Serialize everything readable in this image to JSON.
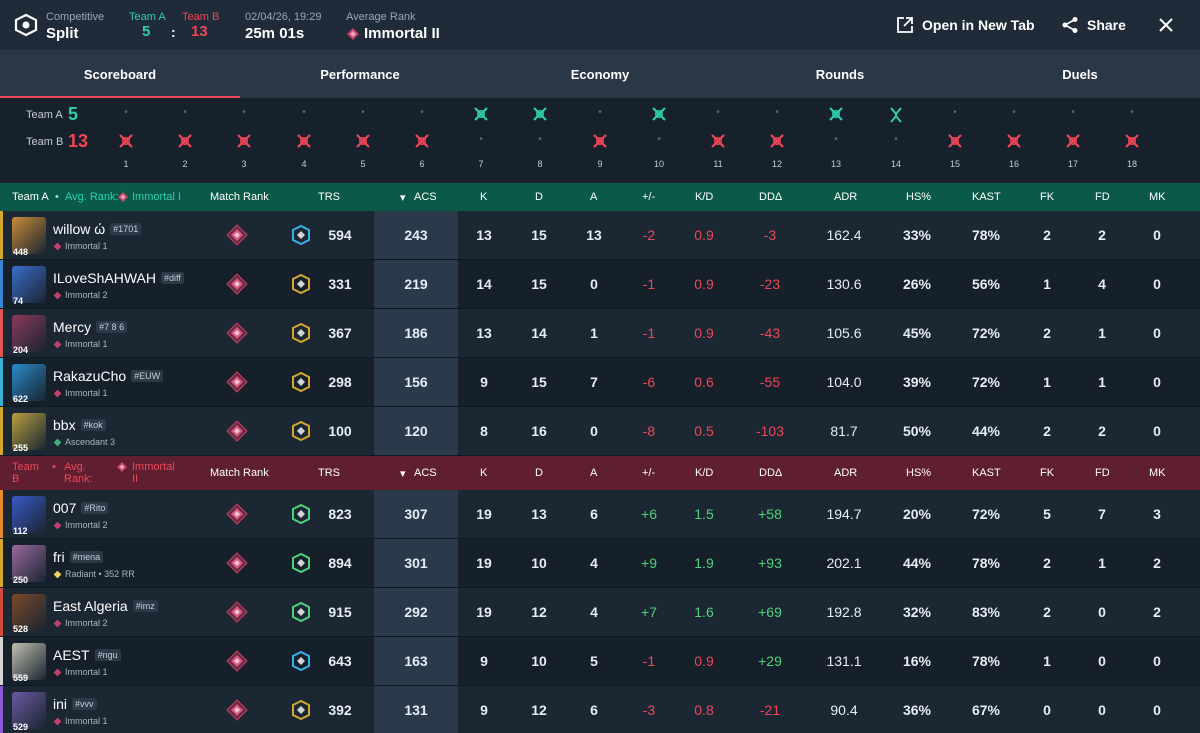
{
  "header": {
    "mode": "Competitive",
    "map": "Split",
    "team_a_label": "Team A",
    "team_b_label": "Team B",
    "score_a": "5",
    "score_sep": ":",
    "score_b": "13",
    "date": "02/04/26, 19:29",
    "duration": "25m 01s",
    "avg_rank_label": "Average Rank",
    "avg_rank": "Immortal II",
    "open_new_tab": "Open in New Tab",
    "share": "Share"
  },
  "tabs": [
    "Scoreboard",
    "Performance",
    "Economy",
    "Rounds",
    "Duels"
  ],
  "timeline": {
    "team_a_label": "Team A",
    "team_a_score": "5",
    "team_b_label": "Team B",
    "team_b_score": "13",
    "rounds": [
      "1",
      "2",
      "3",
      "4",
      "5",
      "6",
      "7",
      "8",
      "9",
      "10",
      "11",
      "12",
      "13",
      "14",
      "15",
      "16",
      "17",
      "18"
    ],
    "winners": [
      "B",
      "B",
      "B",
      "B",
      "B",
      "B",
      "A",
      "A",
      "B",
      "A",
      "B",
      "B",
      "A",
      "A",
      "B",
      "B",
      "B",
      "B"
    ],
    "special_round": "14"
  },
  "columns": [
    "Match Rank",
    "TRS",
    "ACS",
    "K",
    "D",
    "A",
    "+/-",
    "K/D",
    "DDΔ",
    "ADR",
    "HS%",
    "KAST",
    "FK",
    "FD",
    "MK"
  ],
  "team_a": {
    "label": "Team A",
    "avg_label": "Avg. Rank:",
    "avg_rank": "Immortal I",
    "players": [
      {
        "name": "willow ώ",
        "tag": "#1701",
        "rank": "Immortal 1",
        "level": "448",
        "trs": "594",
        "acs": "243",
        "k": "13",
        "d": "15",
        "a": "13",
        "pm": "-2",
        "kd": "0.9",
        "dd": "-3",
        "adr": "162.4",
        "hs": "33%",
        "kast": "78%",
        "fk": "2",
        "fd": "2",
        "mk": "0"
      },
      {
        "name": "ILoveShAHWAH",
        "tag": "#diff",
        "rank": "Immortal 2",
        "level": "74",
        "trs": "331",
        "acs": "219",
        "k": "14",
        "d": "15",
        "a": "0",
        "pm": "-1",
        "kd": "0.9",
        "dd": "-23",
        "adr": "130.6",
        "hs": "26%",
        "kast": "56%",
        "fk": "1",
        "fd": "4",
        "mk": "0"
      },
      {
        "name": "Mercy",
        "tag": "#7 8 6",
        "rank": "Immortal 1",
        "level": "204",
        "trs": "367",
        "acs": "186",
        "k": "13",
        "d": "14",
        "a": "1",
        "pm": "-1",
        "kd": "0.9",
        "dd": "-43",
        "adr": "105.6",
        "hs": "45%",
        "kast": "72%",
        "fk": "2",
        "fd": "1",
        "mk": "0"
      },
      {
        "name": "RakazuCho",
        "tag": "#EUW",
        "rank": "Immortal 1",
        "level": "622",
        "trs": "298",
        "acs": "156",
        "k": "9",
        "d": "15",
        "a": "7",
        "pm": "-6",
        "kd": "0.6",
        "dd": "-55",
        "adr": "104.0",
        "hs": "39%",
        "kast": "72%",
        "fk": "1",
        "fd": "1",
        "mk": "0"
      },
      {
        "name": "bbx",
        "tag": "#kok",
        "rank": "Ascendant 3",
        "level": "255",
        "trs": "100",
        "acs": "120",
        "k": "8",
        "d": "16",
        "a": "0",
        "pm": "-8",
        "kd": "0.5",
        "dd": "-103",
        "adr": "81.7",
        "hs": "50%",
        "kast": "44%",
        "fk": "2",
        "fd": "2",
        "mk": "0"
      }
    ]
  },
  "team_b": {
    "label": "Team B",
    "avg_label": "Avg. Rank:",
    "avg_rank": "Immortal II",
    "players": [
      {
        "name": "007",
        "tag": "#Rito",
        "rank": "Immortal 2",
        "level": "112",
        "trs": "823",
        "acs": "307",
        "k": "19",
        "d": "13",
        "a": "6",
        "pm": "+6",
        "kd": "1.5",
        "dd": "+58",
        "adr": "194.7",
        "hs": "20%",
        "kast": "72%",
        "fk": "5",
        "fd": "7",
        "mk": "3"
      },
      {
        "name": "fri",
        "tag": "#mena",
        "rank": "Radiant • 352 RR",
        "level": "250",
        "trs": "894",
        "acs": "301",
        "k": "19",
        "d": "10",
        "a": "4",
        "pm": "+9",
        "kd": "1.9",
        "dd": "+93",
        "adr": "202.1",
        "hs": "44%",
        "kast": "78%",
        "fk": "2",
        "fd": "1",
        "mk": "2"
      },
      {
        "name": "East Algeria",
        "tag": "#imz",
        "rank": "Immortal 2",
        "level": "528",
        "trs": "915",
        "acs": "292",
        "k": "19",
        "d": "12",
        "a": "4",
        "pm": "+7",
        "kd": "1.6",
        "dd": "+69",
        "adr": "192.8",
        "hs": "32%",
        "kast": "83%",
        "fk": "2",
        "fd": "0",
        "mk": "2"
      },
      {
        "name": "AEST",
        "tag": "#ngu",
        "rank": "Immortal 1",
        "level": "559",
        "trs": "643",
        "acs": "163",
        "k": "9",
        "d": "10",
        "a": "5",
        "pm": "-1",
        "kd": "0.9",
        "dd": "+29",
        "adr": "131.1",
        "hs": "16%",
        "kast": "78%",
        "fk": "1",
        "fd": "0",
        "mk": "0"
      },
      {
        "name": "ini",
        "tag": "#vvv",
        "rank": "Immortal 1",
        "level": "529",
        "trs": "392",
        "acs": "131",
        "k": "9",
        "d": "12",
        "a": "6",
        "pm": "-3",
        "kd": "0.8",
        "dd": "-21",
        "adr": "90.4",
        "hs": "36%",
        "kast": "67%",
        "fk": "0",
        "fd": "0",
        "mk": "0"
      }
    ]
  },
  "colors": {
    "team_a": "#2ecfad",
    "team_b": "#ef4657",
    "positive": "#4fd37a",
    "background": "#0f1923"
  }
}
